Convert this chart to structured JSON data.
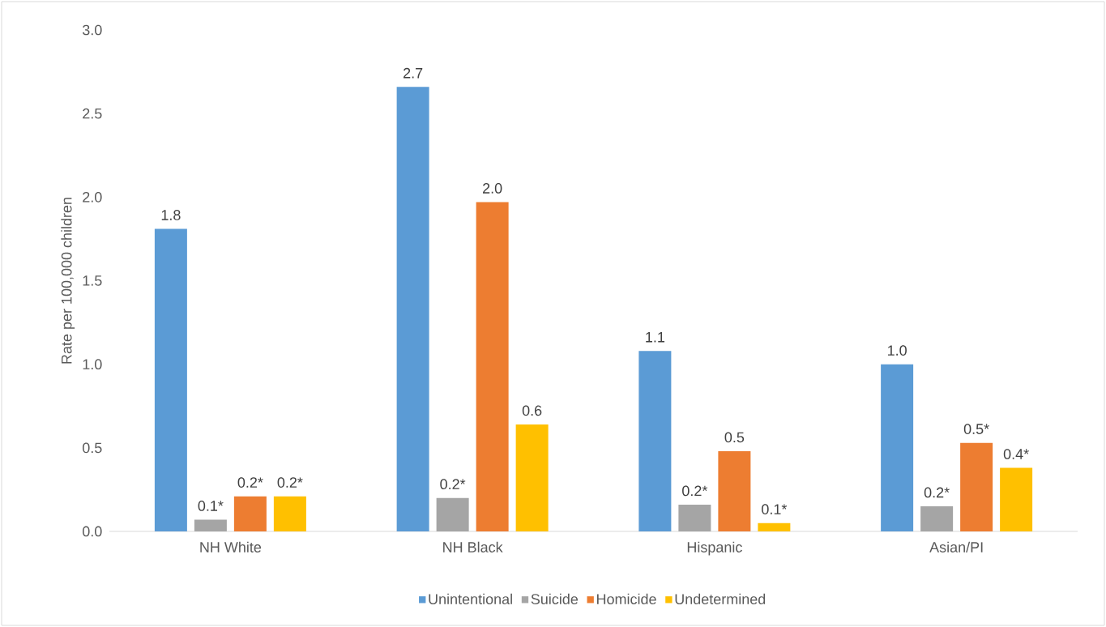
{
  "chart_data": {
    "type": "bar",
    "ylabel": "Rate per 100,000 children",
    "categories": [
      "NH White",
      "NH Black",
      "Hispanic",
      "Asian/PI"
    ],
    "series": [
      {
        "name": "Unintentional",
        "color": "#5b9bd5",
        "values": [
          1.81,
          2.66,
          1.08,
          1.0
        ],
        "value_labels": [
          "1.8",
          "2.7",
          "1.1",
          "1.0"
        ]
      },
      {
        "name": "Suicide",
        "color": "#a5a5a5",
        "values": [
          0.07,
          0.2,
          0.16,
          0.15
        ],
        "value_labels": [
          "0.1*",
          "0.2*",
          "0.2*",
          "0.2*"
        ]
      },
      {
        "name": "Homicide",
        "color": "#ed7d31",
        "values": [
          0.21,
          1.97,
          0.48,
          0.53
        ],
        "value_labels": [
          "0.2*",
          "2.0",
          "0.5",
          "0.5*"
        ]
      },
      {
        "name": "Undetermined",
        "color": "#ffc000",
        "values": [
          0.21,
          0.64,
          0.05,
          0.38
        ],
        "value_labels": [
          "0.2*",
          "0.6",
          "0.1*",
          "0.4*"
        ]
      }
    ],
    "ylim": [
      0,
      3
    ],
    "yticks": [
      {
        "value": 0,
        "label": "0.0"
      },
      {
        "value": 0.5,
        "label": "0.5"
      },
      {
        "value": 1,
        "label": "1.0"
      },
      {
        "value": 1.5,
        "label": "1.5"
      },
      {
        "value": 2,
        "label": "2.0"
      },
      {
        "value": 2.5,
        "label": "2.5"
      },
      {
        "value": 3,
        "label": "3.0"
      }
    ],
    "grid": false,
    "legend": "bottom"
  }
}
